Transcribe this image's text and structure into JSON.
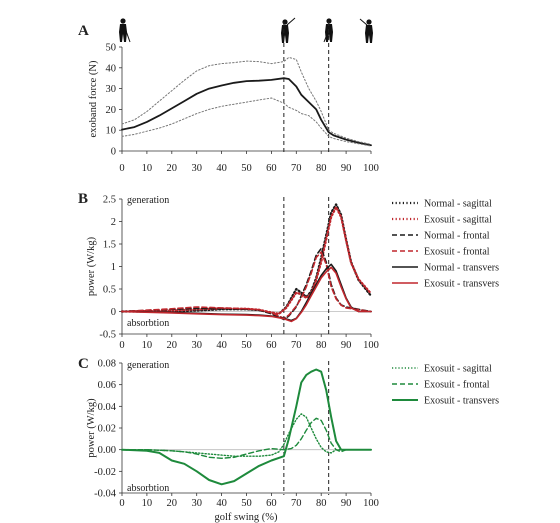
{
  "chart_data": [
    {
      "type": "line",
      "panel_label": "A",
      "ylabel": "exoband force (N)",
      "xlabel": "",
      "xlim": [
        0,
        100
      ],
      "ylim": [
        0,
        50
      ],
      "xticks": [
        "0",
        "10",
        "20",
        "30",
        "40",
        "50",
        "60",
        "70",
        "80",
        "90",
        "100"
      ],
      "yticks": [
        "0",
        "10",
        "20",
        "30",
        "40",
        "50"
      ],
      "vlines": [
        65,
        83
      ],
      "series": [
        {
          "style": "mean",
          "color": "#1a1a1a",
          "dash": "solid",
          "x": [
            0,
            5,
            10,
            15,
            20,
            25,
            30,
            35,
            40,
            45,
            50,
            55,
            60,
            65,
            67,
            70,
            72,
            75,
            78,
            80,
            83,
            85,
            90,
            95,
            100
          ],
          "y": [
            10.3,
            11.5,
            14,
            17,
            20.5,
            24,
            27.5,
            30,
            31.5,
            32.8,
            33.6,
            33.8,
            34.2,
            35,
            34.6,
            31,
            27,
            23.5,
            20,
            15,
            9,
            7.5,
            5.5,
            4,
            2.8
          ]
        },
        {
          "style": "upper",
          "color": "#777777",
          "dash": "1.5 2",
          "x": [
            0,
            5,
            10,
            15,
            20,
            25,
            30,
            35,
            40,
            45,
            50,
            55,
            60,
            65,
            67,
            70,
            72,
            75,
            78,
            80,
            83,
            85,
            90,
            95,
            100
          ],
          "y": [
            13,
            15,
            19,
            24,
            29,
            34,
            38.5,
            41,
            42,
            42.5,
            43.2,
            43,
            42,
            43,
            45,
            44,
            38,
            30,
            24,
            19,
            10,
            8.5,
            6.2,
            4.5,
            3.2
          ]
        },
        {
          "style": "lower",
          "color": "#777777",
          "dash": "1.5 2",
          "x": [
            0,
            5,
            10,
            15,
            20,
            25,
            30,
            35,
            40,
            45,
            50,
            55,
            60,
            65,
            67,
            70,
            72,
            75,
            78,
            80,
            83,
            85,
            90,
            95,
            100
          ],
          "y": [
            7,
            8,
            9.5,
            11,
            13,
            15.5,
            18,
            20,
            21.5,
            22.5,
            23.5,
            24.5,
            25.5,
            23,
            21,
            19.5,
            18,
            17,
            14,
            11,
            7,
            6,
            4.5,
            3.5,
            2.4
          ]
        }
      ]
    },
    {
      "type": "line",
      "panel_label": "B",
      "ylabel": "power (W/kg)",
      "xlabel": "",
      "xlim": [
        0,
        100
      ],
      "ylim": [
        -0.5,
        2.5
      ],
      "xticks": [
        "0",
        "10",
        "20",
        "30",
        "40",
        "50",
        "60",
        "70",
        "80",
        "90",
        "100"
      ],
      "yticks": [
        "-0.5",
        "0",
        "0.5",
        "1",
        "1.5",
        "2",
        "2.5"
      ],
      "vlines": [
        65,
        83
      ],
      "annotations": {
        "top": "generation",
        "bottom": "absorbtion"
      },
      "series": [
        {
          "name": "Normal - sagittal",
          "color": "#1a1a1a",
          "dash": "1.2 2.4",
          "width": 2.2,
          "x": [
            0,
            20,
            30,
            40,
            50,
            55,
            60,
            63,
            66,
            68,
            70,
            72,
            74,
            76,
            78,
            80,
            82,
            84,
            86,
            88,
            90,
            92,
            95,
            100
          ],
          "y": [
            0,
            0,
            0.02,
            0.05,
            0.05,
            0.03,
            -0.03,
            -0.05,
            0.1,
            0.3,
            0.5,
            0.42,
            0.32,
            0.45,
            0.75,
            1.2,
            1.7,
            2.2,
            2.38,
            2.15,
            1.6,
            1.1,
            0.7,
            0.35
          ]
        },
        {
          "name": "Exosuit - sagittal",
          "color": "#c0272d",
          "dash": "1.2 2.4",
          "width": 2.2,
          "x": [
            0,
            20,
            30,
            40,
            50,
            55,
            60,
            63,
            66,
            68,
            70,
            72,
            74,
            76,
            78,
            80,
            82,
            84,
            86,
            88,
            90,
            92,
            95,
            100
          ],
          "y": [
            0,
            0.02,
            0.05,
            0.07,
            0.06,
            0.04,
            -0.02,
            -0.05,
            0.08,
            0.25,
            0.42,
            0.38,
            0.3,
            0.4,
            0.7,
            1.1,
            1.6,
            2.1,
            2.32,
            2.1,
            1.58,
            1.08,
            0.72,
            0.4
          ]
        },
        {
          "name": "Normal - frontal",
          "color": "#1a1a1a",
          "dash": "5 3",
          "width": 1.6,
          "x": [
            0,
            20,
            30,
            40,
            50,
            55,
            60,
            63,
            65,
            67,
            70,
            72,
            74,
            76,
            78,
            80,
            82,
            84,
            86,
            88,
            90,
            95,
            100
          ],
          "y": [
            0,
            0.05,
            0.07,
            0.06,
            0.05,
            0.03,
            -0.05,
            -0.12,
            -0.18,
            -0.1,
            0.1,
            0.35,
            0.6,
            0.9,
            1.25,
            1.4,
            1.1,
            0.6,
            0.3,
            0.15,
            0.1,
            0.05,
            0
          ]
        },
        {
          "name": "Exosuit - frontal",
          "color": "#c0272d",
          "dash": "5 3",
          "width": 1.6,
          "x": [
            0,
            20,
            30,
            40,
            50,
            55,
            60,
            63,
            65,
            67,
            70,
            72,
            74,
            76,
            78,
            80,
            82,
            84,
            86,
            88,
            90,
            95,
            100
          ],
          "y": [
            0,
            0.06,
            0.1,
            0.08,
            0.06,
            0.04,
            -0.03,
            -0.1,
            -0.15,
            -0.08,
            0.12,
            0.3,
            0.55,
            0.85,
            1.2,
            1.32,
            1.05,
            0.55,
            0.28,
            0.14,
            0.08,
            0.04,
            0
          ]
        },
        {
          "name": "Normal - transvers",
          "color": "#1a1a1a",
          "dash": "",
          "width": 1.6,
          "x": [
            0,
            20,
            30,
            40,
            50,
            55,
            60,
            65,
            68,
            70,
            72,
            74,
            76,
            78,
            80,
            82,
            84,
            86,
            88,
            90,
            92,
            95,
            100
          ],
          "y": [
            0,
            -0.02,
            -0.04,
            -0.06,
            -0.07,
            -0.08,
            -0.1,
            -0.15,
            -0.2,
            -0.15,
            0,
            0.2,
            0.4,
            0.6,
            0.8,
            0.95,
            1.05,
            0.9,
            0.6,
            0.3,
            0.1,
            0,
            0
          ]
        },
        {
          "name": "Exosuit - transvers",
          "color": "#c0272d",
          "dash": "",
          "width": 1.6,
          "x": [
            0,
            20,
            30,
            40,
            50,
            55,
            60,
            65,
            68,
            70,
            72,
            74,
            76,
            78,
            80,
            82,
            84,
            86,
            88,
            90,
            92,
            95,
            100
          ],
          "y": [
            0,
            -0.03,
            -0.05,
            -0.07,
            -0.08,
            -0.09,
            -0.11,
            -0.16,
            -0.22,
            -0.16,
            -0.02,
            0.15,
            0.35,
            0.55,
            0.75,
            0.88,
            0.98,
            0.85,
            0.55,
            0.28,
            0.08,
            0,
            0
          ]
        }
      ]
    },
    {
      "type": "line",
      "panel_label": "C",
      "ylabel": "power (W/kg)",
      "xlabel": "golf swing (%)",
      "xlim": [
        0,
        100
      ],
      "ylim": [
        -0.04,
        0.08
      ],
      "xticks": [
        "0",
        "10",
        "20",
        "30",
        "40",
        "50",
        "60",
        "70",
        "80",
        "90",
        "100"
      ],
      "yticks": [
        "-0.04",
        "-0.02",
        "0.00",
        "0.02",
        "0.04",
        "0.06",
        "0.08"
      ],
      "vlines": [
        65,
        83
      ],
      "annotations": {
        "top": "generation",
        "bottom": "absorbtion"
      },
      "series": [
        {
          "name": "Exosuit - sagittal",
          "color": "#1e8a3c",
          "dash": "1.2 2",
          "width": 1.4,
          "x": [
            0,
            10,
            20,
            25,
            30,
            35,
            40,
            45,
            50,
            55,
            60,
            63,
            65,
            67,
            70,
            72,
            74,
            76,
            78,
            80,
            82,
            84,
            86,
            90,
            95,
            100
          ],
          "y": [
            0,
            0,
            -0.001,
            -0.002,
            -0.003,
            -0.004,
            -0.005,
            -0.006,
            -0.006,
            -0.006,
            -0.005,
            -0.002,
            0.005,
            0.015,
            0.028,
            0.033,
            0.03,
            0.02,
            0.01,
            0.002,
            -0.002,
            -0.003,
            0,
            0,
            0,
            0
          ]
        },
        {
          "name": "Exosuit - frontal",
          "color": "#1e8a3c",
          "dash": "5 3",
          "width": 1.4,
          "x": [
            0,
            10,
            20,
            25,
            30,
            35,
            40,
            45,
            50,
            55,
            60,
            65,
            68,
            70,
            72,
            74,
            76,
            78,
            80,
            82,
            84,
            86,
            88,
            90,
            95,
            100
          ],
          "y": [
            0,
            0,
            -0.001,
            -0.002,
            -0.004,
            -0.007,
            -0.008,
            -0.007,
            -0.004,
            -0.001,
            0.001,
            0,
            0.001,
            0.004,
            0.01,
            0.018,
            0.025,
            0.029,
            0.027,
            0.018,
            0.006,
            0,
            -0.002,
            0,
            0,
            0
          ]
        },
        {
          "name": "Exosuit - transvers",
          "color": "#1e8a3c",
          "dash": "",
          "width": 2,
          "x": [
            0,
            10,
            15,
            20,
            25,
            30,
            35,
            40,
            45,
            50,
            55,
            60,
            65,
            67,
            70,
            72,
            74,
            76,
            78,
            80,
            82,
            84,
            86,
            88,
            90,
            95,
            100
          ],
          "y": [
            0,
            -0.001,
            -0.003,
            -0.01,
            -0.013,
            -0.02,
            -0.028,
            -0.032,
            -0.029,
            -0.022,
            -0.015,
            -0.01,
            -0.006,
            0.01,
            0.04,
            0.062,
            0.069,
            0.072,
            0.074,
            0.072,
            0.055,
            0.03,
            0.008,
            0,
            0,
            0,
            0
          ]
        }
      ]
    }
  ]
}
